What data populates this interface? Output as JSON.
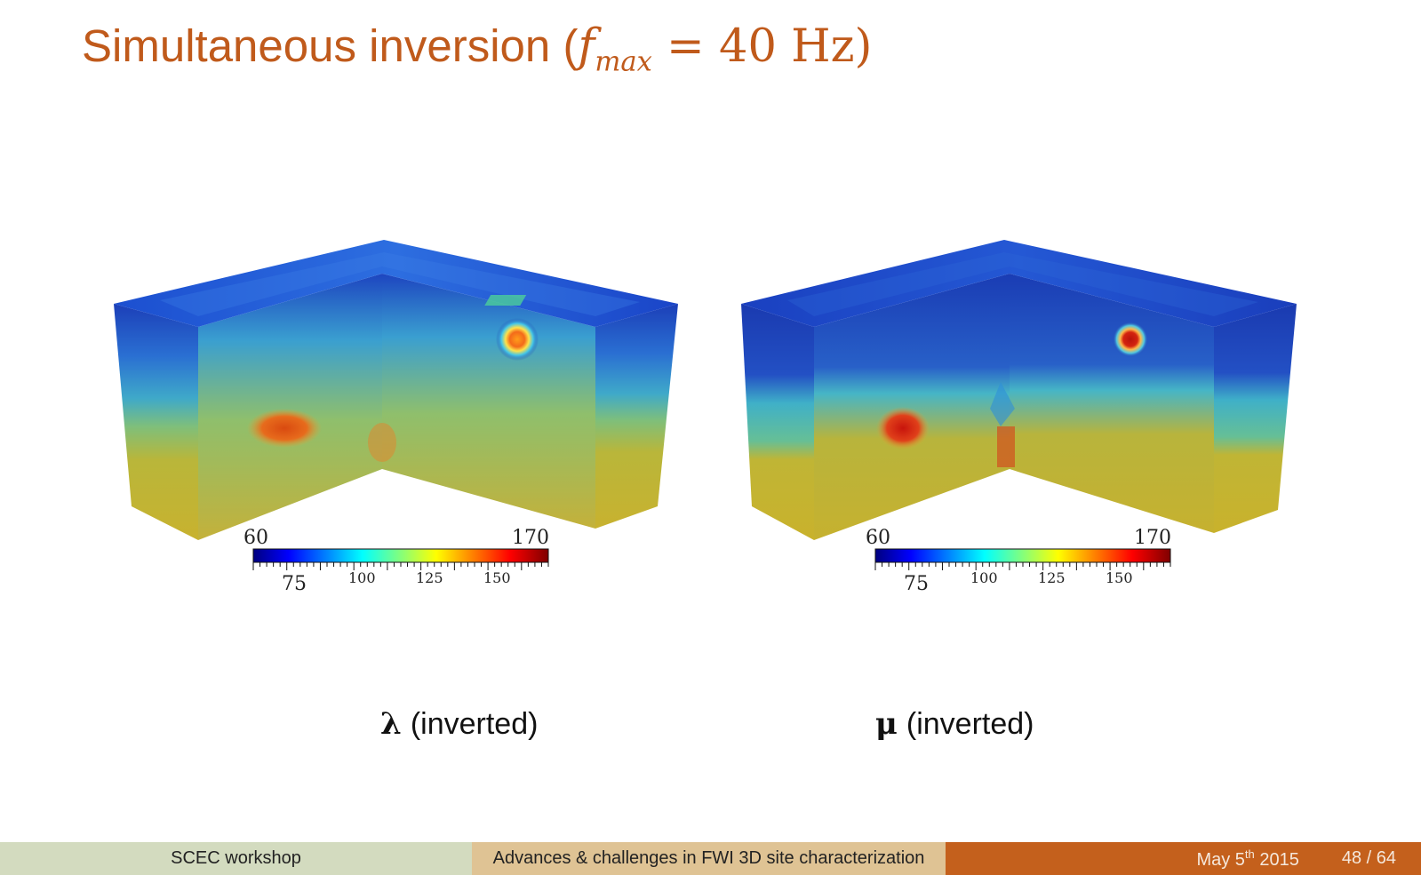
{
  "slide": {
    "title_prefix": "Simultaneous inversion (",
    "title_var": "f",
    "title_sub": "max",
    "title_suffix": " = 40 Hz)",
    "title_color": "#c05a1b"
  },
  "figures": [
    {
      "caption_symbol": "λ",
      "caption_text": "(inverted)",
      "colorbar": {
        "min_label": "60",
        "max_label": "170",
        "ticks": [
          "75",
          "100",
          "125",
          "150"
        ]
      }
    },
    {
      "caption_symbol": "μ",
      "caption_text": "(inverted)",
      "colorbar": {
        "min_label": "60",
        "max_label": "170",
        "ticks": [
          "75",
          "100",
          "125",
          "150"
        ]
      }
    }
  ],
  "footer": {
    "event": "SCEC workshop",
    "talk_title": "Advances & challenges in FWI 3D site characterization",
    "date_prefix": "May 5",
    "date_sup": "th",
    "date_year": "2015",
    "page": "48 / 64",
    "colors": [
      "#d3dbbf",
      "#dfc394",
      "#c4601c"
    ]
  },
  "colormap": {
    "name": "jet",
    "stops": [
      "#00007f",
      "#0000ff",
      "#00ffff",
      "#ffff00",
      "#ff0000",
      "#7f0000"
    ]
  }
}
